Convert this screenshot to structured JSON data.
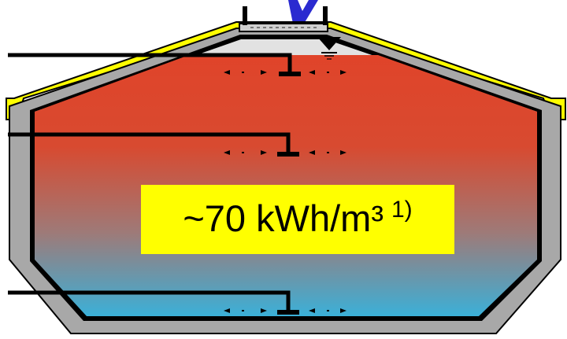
{
  "diagram": {
    "energy_density": {
      "value_text": "~70 kWh/m³",
      "footnote_marker": "1)"
    },
    "colors": {
      "water_hot": "#e0442a",
      "water_mid": "#9e7a78",
      "water_cold": "#3bb0d8",
      "air_gap": "#e2e2e2",
      "wall_concrete": "#a8a8a8",
      "outline": "#000000",
      "insulation_cover": "#ffff00",
      "label_background": "#ffff00",
      "title_fragment": "#2a2ad0"
    },
    "icons": [
      "water-level-triangle-icon",
      "flow-arrow-icon",
      "diffuser-icon",
      "pipe-line"
    ]
  }
}
